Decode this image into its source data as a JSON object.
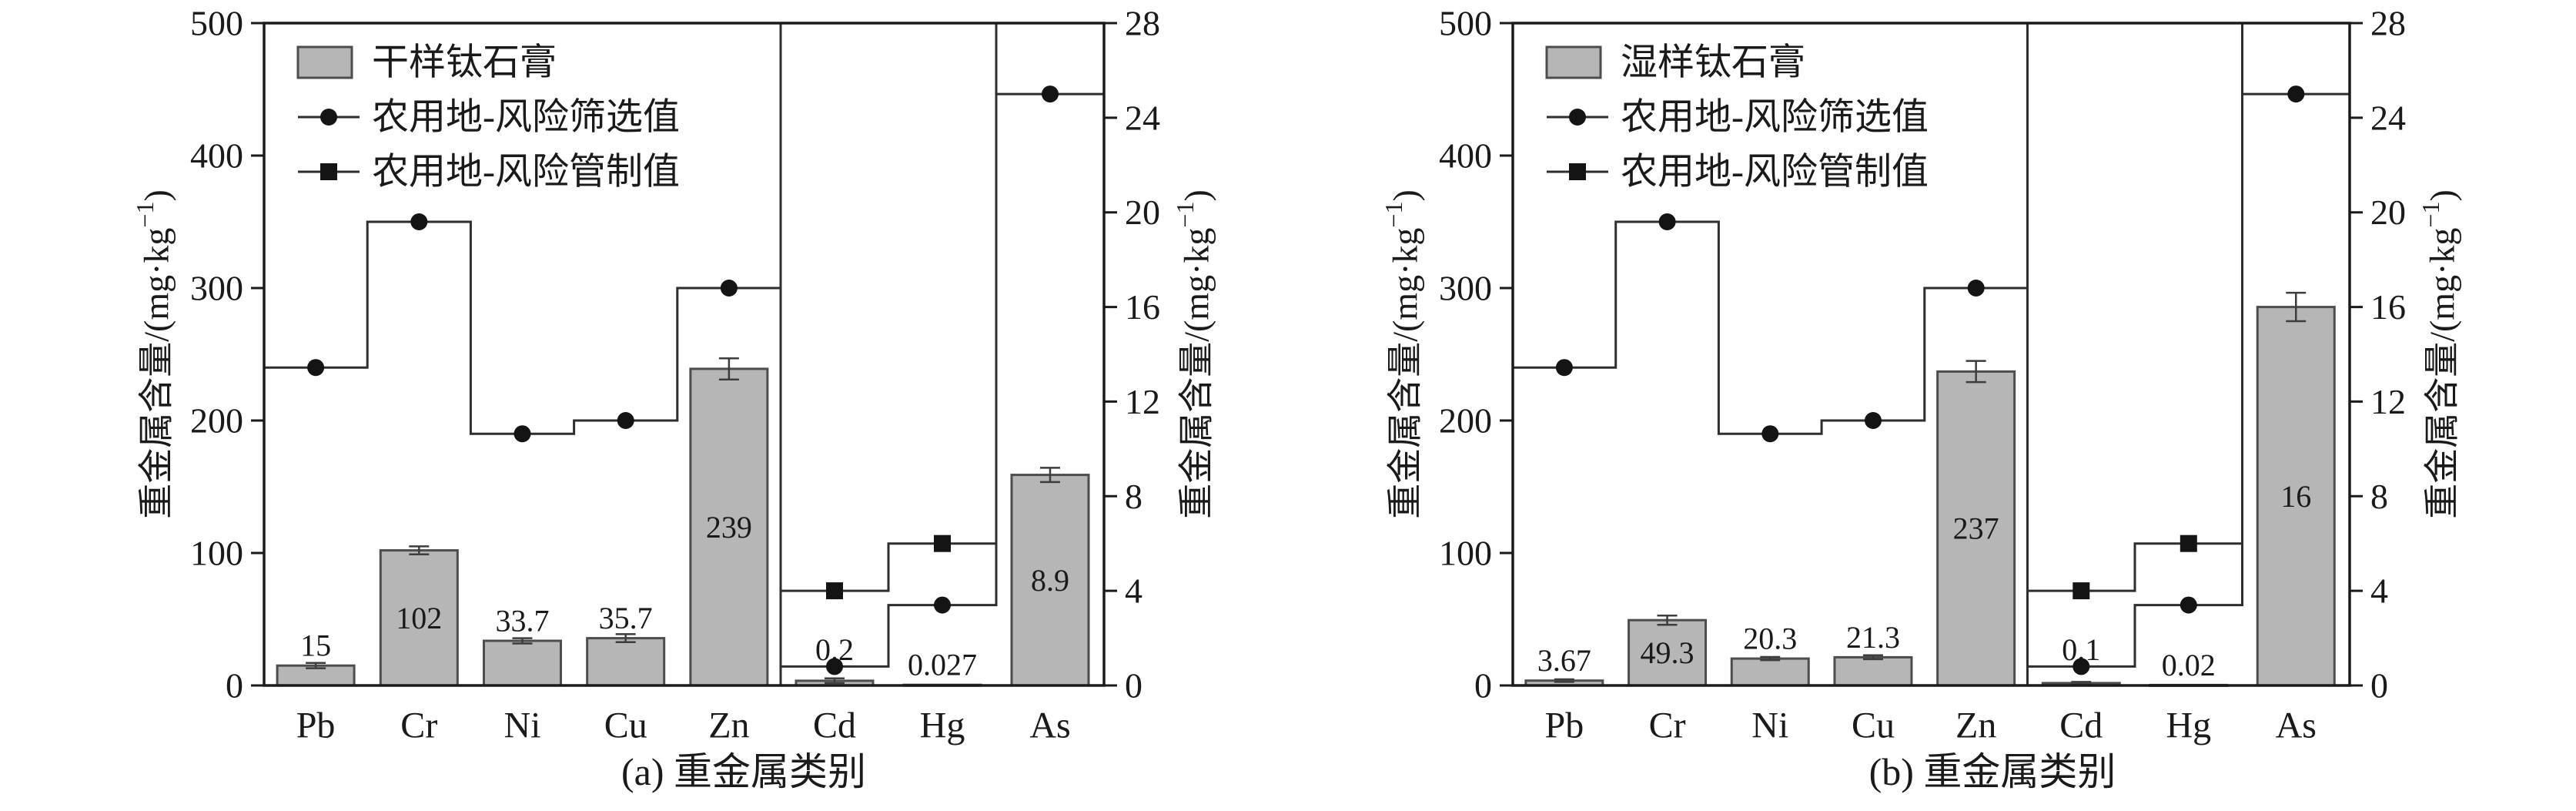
{
  "colors": {
    "bar_fill": "#b6b6b6",
    "bar_edge": "#4d4d4d",
    "step_line": "#2e2e2e",
    "marker": "#141414",
    "frame": "#1a1a1a",
    "error": "#3d3d3d",
    "text": "#1a1a1a"
  },
  "axes": {
    "y_label_pre": "重金属含量/(mg·kg",
    "y_label_sup": "−1",
    "y_label_post": ")",
    "left_range": [
      0,
      500
    ],
    "right_range": [
      0,
      28
    ],
    "left_ticks": [
      0,
      100,
      200,
      300,
      400,
      500
    ],
    "right_ticks": [
      0,
      4,
      8,
      12,
      16,
      20,
      24,
      28
    ]
  },
  "chart_data": [
    {
      "panel": "a",
      "type": "bar",
      "caption": "(a) 重金属类别",
      "legend": [
        {
          "label": "干样钛石膏",
          "type": "bar-swatch"
        },
        {
          "label": "农用地-风险筛选值",
          "type": "line-circle"
        },
        {
          "label": "农用地-风险管制值",
          "type": "line-square"
        }
      ],
      "categories": [
        {
          "name": "Pb",
          "axis": "left",
          "bar": 15,
          "bar_label": "15",
          "error": 2,
          "screening": 240
        },
        {
          "name": "Cr",
          "axis": "left",
          "bar": 102,
          "bar_label": "102",
          "error": 3,
          "screening": 350
        },
        {
          "name": "Ni",
          "axis": "left",
          "bar": 33.7,
          "bar_label": "33.7",
          "error": 2,
          "screening": 190
        },
        {
          "name": "Cu",
          "axis": "left",
          "bar": 35.7,
          "bar_label": "35.7",
          "error": 3,
          "screening": 200
        },
        {
          "name": "Zn",
          "axis": "left",
          "bar": 239,
          "bar_label": "239",
          "error": 8,
          "screening": 300
        },
        {
          "name": "Cd",
          "axis": "right",
          "bar": 0.2,
          "bar_label": "0.2",
          "error": 0.1,
          "screening": 0.8,
          "control": 4.0
        },
        {
          "name": "Hg",
          "axis": "right",
          "bar": 0.027,
          "bar_label": "0.027",
          "error": 0.01,
          "screening": 3.4,
          "control": 6.0
        },
        {
          "name": "As",
          "axis": "right",
          "bar": 8.9,
          "bar_label": "8.9",
          "error": 0.3,
          "screening": 25,
          "control_offscale": true
        }
      ]
    },
    {
      "panel": "b",
      "type": "bar",
      "caption": "(b) 重金属类别",
      "legend": [
        {
          "label": "湿样钛石膏",
          "type": "bar-swatch"
        },
        {
          "label": "农用地-风险筛选值",
          "type": "line-circle"
        },
        {
          "label": "农用地-风险管制值",
          "type": "line-square"
        }
      ],
      "categories": [
        {
          "name": "Pb",
          "axis": "left",
          "bar": 3.67,
          "bar_label": "3.67",
          "error": 1,
          "screening": 240
        },
        {
          "name": "Cr",
          "axis": "left",
          "bar": 49.3,
          "bar_label": "49.3",
          "error": 3.5,
          "screening": 350
        },
        {
          "name": "Ni",
          "axis": "left",
          "bar": 20.3,
          "bar_label": "20.3",
          "error": 1.2,
          "screening": 190
        },
        {
          "name": "Cu",
          "axis": "left",
          "bar": 21.3,
          "bar_label": "21.3",
          "error": 1.5,
          "screening": 200
        },
        {
          "name": "Zn",
          "axis": "left",
          "bar": 237,
          "bar_label": "237",
          "error": 8,
          "screening": 300
        },
        {
          "name": "Cd",
          "axis": "right",
          "bar": 0.1,
          "bar_label": "0.1",
          "error": 0.05,
          "screening": 0.8,
          "control": 4.0
        },
        {
          "name": "Hg",
          "axis": "right",
          "bar": 0.02,
          "bar_label": "0.02",
          "error": 0.008,
          "screening": 3.4,
          "control": 6.0
        },
        {
          "name": "As",
          "axis": "right",
          "bar": 16,
          "bar_label": "16",
          "error": 0.6,
          "screening": 25,
          "control_offscale": true
        }
      ]
    }
  ]
}
